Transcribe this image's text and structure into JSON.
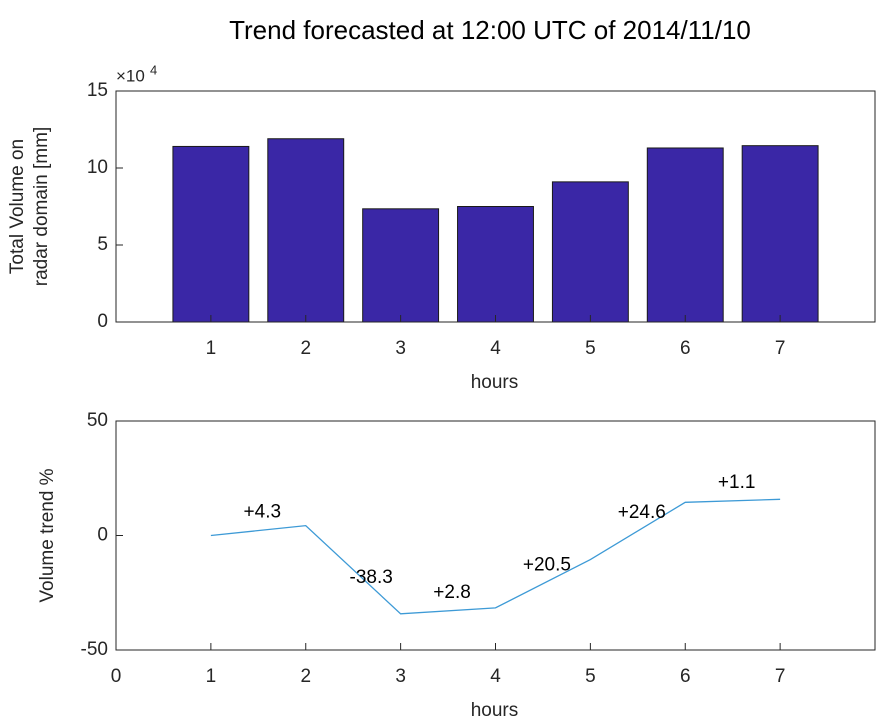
{
  "chart_data": [
    {
      "type": "bar",
      "title": "Trend forecasted at 12:00 UTC of 2014/11/10",
      "ylabel": [
        "Total Volume on",
        "radar domain [mm]"
      ],
      "xlabel": "hours",
      "y_exponent_base": "×10",
      "y_exponent": "4",
      "x": [
        1,
        2,
        3,
        4,
        5,
        6,
        7
      ],
      "values": [
        11.4,
        11.9,
        7.35,
        7.5,
        9.1,
        11.3,
        11.45
      ],
      "color": "#3a27a6",
      "xlim": [
        0,
        8
      ],
      "xticks": [
        1,
        2,
        3,
        4,
        5,
        6,
        7
      ],
      "ylim": [
        0,
        15
      ],
      "yticks": [
        0,
        5,
        10,
        15
      ]
    },
    {
      "type": "line",
      "ylabel": [
        "Volume trend %"
      ],
      "xlabel": "hours",
      "x": [
        1,
        2,
        3,
        4,
        5,
        6,
        7
      ],
      "values": [
        0,
        4.3,
        -34.2,
        -31.6,
        -10.5,
        14.5,
        15.8
      ],
      "annotations": [
        "+4.3",
        "-38.3",
        "+2.8",
        "+20.5",
        "+24.6",
        "+1.1"
      ],
      "color": "#3d9ad6",
      "xlim": [
        0,
        8
      ],
      "xticks": [
        0,
        1,
        2,
        3,
        4,
        5,
        6,
        7
      ],
      "ylim": [
        -50,
        50
      ],
      "yticks": [
        -50,
        0,
        50
      ]
    }
  ]
}
